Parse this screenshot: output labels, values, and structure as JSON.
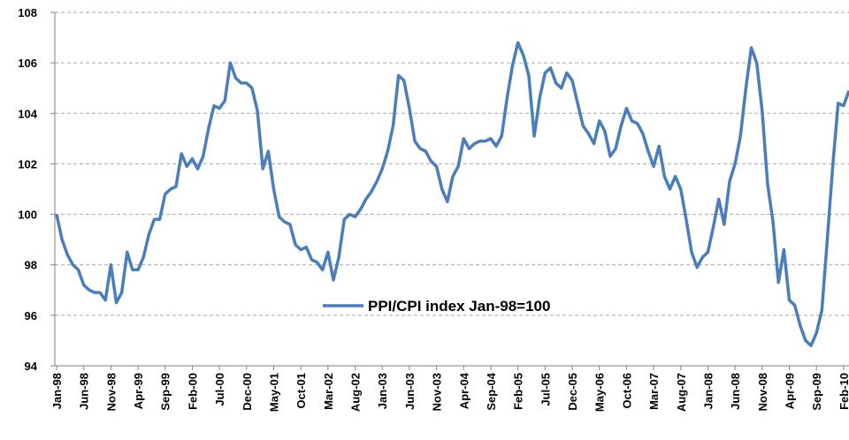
{
  "chart_data": {
    "type": "line",
    "categories": [
      "Jan-98",
      null,
      null,
      null,
      null,
      "Jun-98",
      null,
      null,
      null,
      null,
      "Nov-98",
      null,
      null,
      null,
      null,
      "Apr-99",
      null,
      null,
      null,
      null,
      "Sep-99",
      null,
      null,
      null,
      null,
      "Feb-00",
      null,
      null,
      null,
      null,
      "Jul-00",
      null,
      null,
      null,
      null,
      "Dec-00",
      null,
      null,
      null,
      null,
      "May-01",
      null,
      null,
      null,
      null,
      "Oct-01",
      null,
      null,
      null,
      null,
      "Mar-02",
      null,
      null,
      null,
      null,
      "Aug-02",
      null,
      null,
      null,
      null,
      "Jan-03",
      null,
      null,
      null,
      null,
      "Jun-03",
      null,
      null,
      null,
      null,
      "Nov-03",
      null,
      null,
      null,
      null,
      "Apr-04",
      null,
      null,
      null,
      null,
      "Sep-04",
      null,
      null,
      null,
      null,
      "Feb-05",
      null,
      null,
      null,
      null,
      "Jul-05",
      null,
      null,
      null,
      null,
      "Dec-05",
      null,
      null,
      null,
      null,
      "May-06",
      null,
      null,
      null,
      null,
      "Oct-06",
      null,
      null,
      null,
      null,
      "Mar-07",
      null,
      null,
      null,
      null,
      "Aug-07",
      null,
      null,
      null,
      null,
      "Jan-08",
      null,
      null,
      null,
      null,
      "Jun-08",
      null,
      null,
      null,
      null,
      "Nov-08",
      null,
      null,
      null,
      null,
      "Apr-09",
      null,
      null,
      null,
      null,
      "Sep-09",
      null,
      null,
      null,
      null,
      "Feb-10",
      null
    ],
    "series": [
      {
        "name": "PPI/CPI index Jan-98=100",
        "color": "#4a7ebb",
        "values": [
          100.0,
          99.0,
          98.4,
          98.0,
          97.8,
          97.2,
          97.0,
          96.9,
          96.9,
          96.6,
          98.0,
          96.5,
          96.9,
          98.5,
          97.8,
          97.8,
          98.3,
          99.2,
          99.8,
          99.8,
          100.8,
          101.0,
          101.1,
          102.4,
          101.9,
          102.2,
          101.8,
          102.3,
          103.4,
          104.3,
          104.2,
          104.5,
          106.0,
          105.4,
          105.2,
          105.2,
          105.0,
          104.1,
          101.8,
          102.5,
          101.0,
          99.9,
          99.7,
          99.6,
          98.8,
          98.6,
          98.7,
          98.2,
          98.1,
          97.8,
          98.5,
          97.4,
          98.3,
          99.8,
          100.0,
          99.9,
          100.2,
          100.6,
          100.9,
          101.3,
          101.8,
          102.5,
          103.5,
          105.5,
          105.3,
          104.2,
          102.9,
          102.6,
          102.5,
          102.1,
          101.9,
          101.0,
          100.5,
          101.5,
          101.9,
          103.0,
          102.6,
          102.8,
          102.9,
          102.9,
          103.0,
          102.7,
          103.1,
          104.6,
          105.9,
          106.8,
          106.3,
          105.5,
          103.1,
          104.6,
          105.6,
          105.8,
          105.2,
          105.0,
          105.6,
          105.3,
          104.4,
          103.5,
          103.2,
          102.8,
          103.7,
          103.3,
          102.3,
          102.6,
          103.5,
          104.2,
          103.7,
          103.6,
          103.2,
          102.5,
          101.9,
          102.7,
          101.5,
          101.0,
          101.5,
          101.0,
          99.8,
          98.5,
          97.9,
          98.3,
          98.5,
          99.5,
          100.6,
          99.6,
          101.3,
          102.0,
          103.1,
          105.0,
          106.6,
          106.0,
          104.1,
          101.2,
          99.7,
          97.3,
          98.6,
          96.6,
          96.4,
          95.6,
          95.0,
          94.8,
          95.3,
          96.2,
          99.0,
          101.9,
          104.4,
          104.3,
          104.9
        ]
      }
    ],
    "ylim": [
      94,
      108
    ],
    "yticks": [
      94,
      96,
      98,
      100,
      102,
      104,
      106,
      108
    ],
    "grid": true
  }
}
